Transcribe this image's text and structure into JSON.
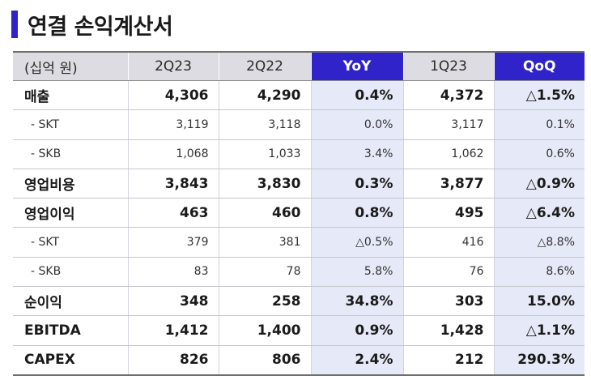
{
  "title": "연결 손익계산서",
  "colors": {
    "accent": "#2f23c9",
    "header_bg": "#dcdce2",
    "highlight_col_bg": "#e6e9f7"
  },
  "table": {
    "headers": [
      "(십억 원)",
      "2Q23",
      "2Q22",
      "YoY",
      "1Q23",
      "QoQ"
    ],
    "rows": [
      {
        "type": "main",
        "cells": [
          "매출",
          "4,306",
          "4,290",
          "0.4%",
          "4,372",
          "△1.5%"
        ]
      },
      {
        "type": "sub",
        "cells": [
          "- SKT",
          "3,119",
          "3,118",
          "0.0%",
          "3,117",
          "0.1%"
        ]
      },
      {
        "type": "sub",
        "cells": [
          "- SKB",
          "1,068",
          "1,033",
          "3.4%",
          "1,062",
          "0.6%"
        ]
      },
      {
        "type": "main",
        "cells": [
          "영업비용",
          "3,843",
          "3,830",
          "0.3%",
          "3,877",
          "△0.9%"
        ]
      },
      {
        "type": "main",
        "cells": [
          "영업이익",
          "463",
          "460",
          "0.8%",
          "495",
          "△6.4%"
        ]
      },
      {
        "type": "sub",
        "cells": [
          "- SKT",
          "379",
          "381",
          "△0.5%",
          "416",
          "△8.8%"
        ]
      },
      {
        "type": "sub",
        "cells": [
          "- SKB",
          "83",
          "78",
          "5.8%",
          "76",
          "8.6%"
        ]
      },
      {
        "type": "main",
        "cells": [
          "순이익",
          "348",
          "258",
          "34.8%",
          "303",
          "15.0%"
        ]
      },
      {
        "type": "main",
        "cells": [
          "EBITDA",
          "1,412",
          "1,400",
          "0.9%",
          "1,428",
          "△1.1%"
        ]
      },
      {
        "type": "main",
        "cells": [
          "CAPEX",
          "826",
          "806",
          "2.4%",
          "212",
          "290.3%"
        ]
      }
    ]
  }
}
